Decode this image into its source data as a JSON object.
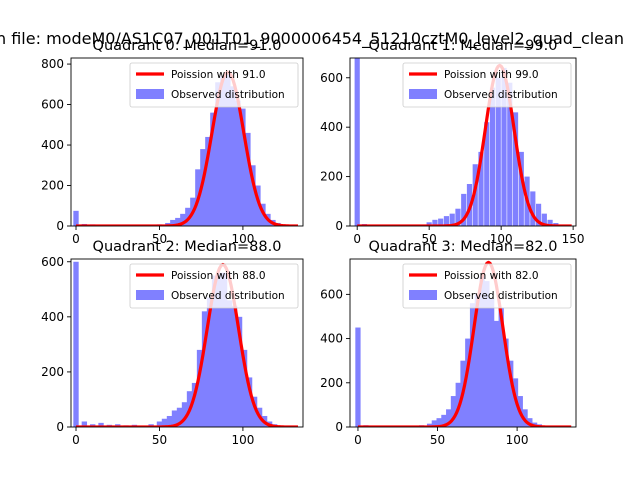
{
  "figure_title": "n file: modeM0/AS1C07_001T01_9000006454_51210cztM0_level2_quad_clean",
  "colors": {
    "bars": "#8080ff",
    "poisson": "#ff0000",
    "axes": "#000000"
  },
  "chart_data": [
    {
      "type": "bar",
      "title": "Quadrant 0: Median=91.0",
      "legend_position": "upper-right",
      "series": [
        {
          "name": "Poission with 91.0",
          "kind": "line",
          "mean": 91.0
        },
        {
          "name": "Observed distribution",
          "kind": "histogram"
        }
      ],
      "xlim": [
        -3,
        136
      ],
      "ylim": [
        0,
        830
      ],
      "xticks": [
        0,
        50,
        100
      ],
      "yticks": [
        0,
        200,
        400,
        600,
        800
      ],
      "bin_width": 3.2,
      "bins": [
        {
          "x": 0,
          "y": 75
        },
        {
          "x": 5,
          "y": 10
        },
        {
          "x": 10,
          "y": 8
        },
        {
          "x": 15,
          "y": 6
        },
        {
          "x": 20,
          "y": 5
        },
        {
          "x": 30,
          "y": 4
        },
        {
          "x": 40,
          "y": 5
        },
        {
          "x": 50,
          "y": 8
        },
        {
          "x": 55,
          "y": 15
        },
        {
          "x": 58,
          "y": 30
        },
        {
          "x": 61,
          "y": 40
        },
        {
          "x": 64,
          "y": 60
        },
        {
          "x": 67,
          "y": 90
        },
        {
          "x": 70,
          "y": 140
        },
        {
          "x": 73,
          "y": 280
        },
        {
          "x": 76,
          "y": 380
        },
        {
          "x": 79,
          "y": 440
        },
        {
          "x": 82,
          "y": 560
        },
        {
          "x": 85,
          "y": 710
        },
        {
          "x": 88,
          "y": 740
        },
        {
          "x": 91,
          "y": 760
        },
        {
          "x": 94,
          "y": 690
        },
        {
          "x": 97,
          "y": 620
        },
        {
          "x": 100,
          "y": 580
        },
        {
          "x": 103,
          "y": 460
        },
        {
          "x": 106,
          "y": 300
        },
        {
          "x": 109,
          "y": 200
        },
        {
          "x": 112,
          "y": 110
        },
        {
          "x": 115,
          "y": 60
        },
        {
          "x": 118,
          "y": 30
        },
        {
          "x": 121,
          "y": 15
        },
        {
          "x": 124,
          "y": 8
        },
        {
          "x": 127,
          "y": 4
        }
      ],
      "poisson_peak": 760
    },
    {
      "type": "bar",
      "title": "Quadrant 1: Median=99.0",
      "legend_position": "upper-right",
      "series": [
        {
          "name": "Poission with 99.0",
          "kind": "line",
          "mean": 99.0
        },
        {
          "name": "Observed distribution",
          "kind": "histogram"
        }
      ],
      "xlim": [
        -5,
        152
      ],
      "ylim": [
        0,
        680
      ],
      "xticks": [
        0,
        50,
        100,
        150
      ],
      "yticks": [
        0,
        200,
        400,
        600
      ],
      "bin_width": 3.6,
      "bins": [
        {
          "x": 0,
          "y": 680
        },
        {
          "x": 5,
          "y": 8
        },
        {
          "x": 10,
          "y": 6
        },
        {
          "x": 20,
          "y": 5
        },
        {
          "x": 30,
          "y": 5
        },
        {
          "x": 40,
          "y": 6
        },
        {
          "x": 50,
          "y": 15
        },
        {
          "x": 54,
          "y": 25
        },
        {
          "x": 58,
          "y": 30
        },
        {
          "x": 62,
          "y": 40
        },
        {
          "x": 66,
          "y": 50
        },
        {
          "x": 70,
          "y": 70
        },
        {
          "x": 74,
          "y": 130
        },
        {
          "x": 78,
          "y": 170
        },
        {
          "x": 82,
          "y": 250
        },
        {
          "x": 86,
          "y": 300
        },
        {
          "x": 90,
          "y": 420
        },
        {
          "x": 94,
          "y": 560
        },
        {
          "x": 98,
          "y": 600
        },
        {
          "x": 102,
          "y": 640
        },
        {
          "x": 106,
          "y": 580
        },
        {
          "x": 110,
          "y": 460
        },
        {
          "x": 114,
          "y": 300
        },
        {
          "x": 118,
          "y": 200
        },
        {
          "x": 122,
          "y": 140
        },
        {
          "x": 126,
          "y": 90
        },
        {
          "x": 130,
          "y": 50
        },
        {
          "x": 134,
          "y": 25
        },
        {
          "x": 138,
          "y": 12
        },
        {
          "x": 142,
          "y": 5
        }
      ],
      "poisson_peak": 650
    },
    {
      "type": "bar",
      "title": "Quadrant 2: Median=88.0",
      "legend_position": "upper-right",
      "series": [
        {
          "name": "Poission with 88.0",
          "kind": "line",
          "mean": 88.0
        },
        {
          "name": "Observed distribution",
          "kind": "histogram"
        }
      ],
      "xlim": [
        -3,
        136
      ],
      "ylim": [
        0,
        610
      ],
      "xticks": [
        0,
        50,
        100
      ],
      "yticks": [
        0,
        200,
        400,
        600
      ],
      "bin_width": 3.2,
      "bins": [
        {
          "x": 0,
          "y": 600
        },
        {
          "x": 5,
          "y": 20
        },
        {
          "x": 10,
          "y": 10
        },
        {
          "x": 15,
          "y": 15
        },
        {
          "x": 20,
          "y": 8
        },
        {
          "x": 25,
          "y": 10
        },
        {
          "x": 30,
          "y": 6
        },
        {
          "x": 35,
          "y": 8
        },
        {
          "x": 40,
          "y": 5
        },
        {
          "x": 45,
          "y": 10
        },
        {
          "x": 50,
          "y": 20
        },
        {
          "x": 53,
          "y": 30
        },
        {
          "x": 56,
          "y": 40
        },
        {
          "x": 59,
          "y": 60
        },
        {
          "x": 62,
          "y": 70
        },
        {
          "x": 65,
          "y": 90
        },
        {
          "x": 68,
          "y": 130
        },
        {
          "x": 71,
          "y": 160
        },
        {
          "x": 74,
          "y": 280
        },
        {
          "x": 77,
          "y": 420
        },
        {
          "x": 80,
          "y": 470
        },
        {
          "x": 83,
          "y": 550
        },
        {
          "x": 86,
          "y": 560
        },
        {
          "x": 89,
          "y": 560
        },
        {
          "x": 92,
          "y": 460
        },
        {
          "x": 95,
          "y": 440
        },
        {
          "x": 98,
          "y": 400
        },
        {
          "x": 101,
          "y": 280
        },
        {
          "x": 104,
          "y": 180
        },
        {
          "x": 107,
          "y": 110
        },
        {
          "x": 110,
          "y": 70
        },
        {
          "x": 113,
          "y": 40
        },
        {
          "x": 116,
          "y": 20
        },
        {
          "x": 119,
          "y": 10
        },
        {
          "x": 124,
          "y": 5
        }
      ],
      "poisson_peak": 590
    },
    {
      "type": "bar",
      "title": "Quadrant 3: Median=82.0",
      "legend_position": "upper-right",
      "series": [
        {
          "name": "Poission with 82.0",
          "kind": "line",
          "mean": 82.0
        },
        {
          "name": "Observed distribution",
          "kind": "histogram"
        }
      ],
      "xlim": [
        -5,
        137
      ],
      "ylim": [
        0,
        760
      ],
      "xticks": [
        0,
        50,
        100
      ],
      "yticks": [
        0,
        200,
        400,
        600
      ],
      "bin_width": 3.3,
      "bins": [
        {
          "x": 0,
          "y": 450
        },
        {
          "x": 5,
          "y": 8
        },
        {
          "x": 10,
          "y": 5
        },
        {
          "x": 20,
          "y": 5
        },
        {
          "x": 30,
          "y": 4
        },
        {
          "x": 40,
          "y": 8
        },
        {
          "x": 45,
          "y": 15
        },
        {
          "x": 48,
          "y": 30
        },
        {
          "x": 51,
          "y": 40
        },
        {
          "x": 54,
          "y": 55
        },
        {
          "x": 57,
          "y": 80
        },
        {
          "x": 60,
          "y": 140
        },
        {
          "x": 63,
          "y": 200
        },
        {
          "x": 66,
          "y": 300
        },
        {
          "x": 69,
          "y": 400
        },
        {
          "x": 72,
          "y": 560
        },
        {
          "x": 75,
          "y": 600
        },
        {
          "x": 78,
          "y": 680
        },
        {
          "x": 81,
          "y": 660
        },
        {
          "x": 84,
          "y": 580
        },
        {
          "x": 87,
          "y": 480
        },
        {
          "x": 90,
          "y": 540
        },
        {
          "x": 93,
          "y": 400
        },
        {
          "x": 96,
          "y": 300
        },
        {
          "x": 99,
          "y": 220
        },
        {
          "x": 102,
          "y": 140
        },
        {
          "x": 105,
          "y": 80
        },
        {
          "x": 108,
          "y": 40
        },
        {
          "x": 111,
          "y": 20
        },
        {
          "x": 114,
          "y": 12
        },
        {
          "x": 118,
          "y": 5
        },
        {
          "x": 122,
          "y": 3
        }
      ],
      "poisson_peak": 745
    }
  ]
}
